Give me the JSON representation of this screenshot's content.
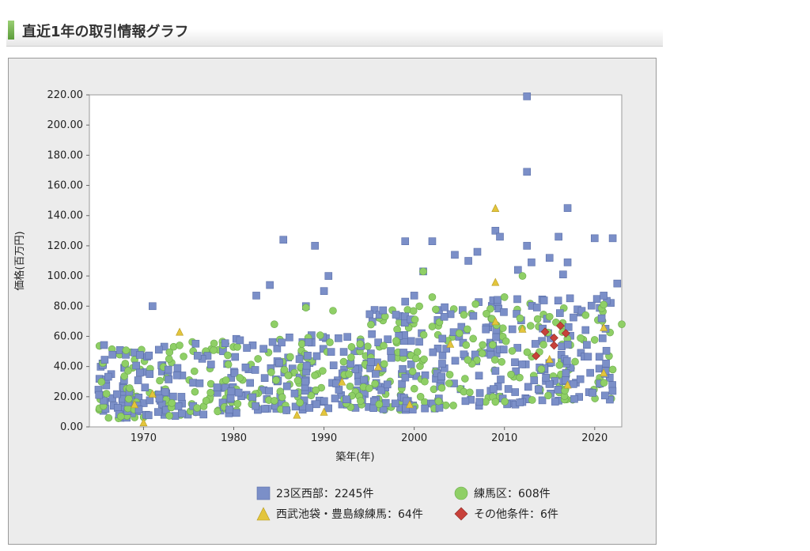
{
  "header": {
    "title": "直近1年の取引情報グラフ"
  },
  "chart_data": {
    "type": "scatter",
    "xlabel": "築年(年)",
    "ylabel": "価格(百万円)",
    "xlim": [
      1964,
      2023
    ],
    "ylim": [
      0,
      220
    ],
    "xticks": [
      1970,
      1980,
      1990,
      2000,
      2010,
      2020
    ],
    "yticks": [
      "0.00",
      "20.00",
      "40.00",
      "60.00",
      "80.00",
      "100.00",
      "120.00",
      "140.00",
      "160.00",
      "180.00",
      "200.00",
      "220.00"
    ],
    "grid": false,
    "legend_position": "bottom",
    "series": [
      {
        "name": "23区西部：2245件",
        "marker": "square",
        "color": "#7b8fc8",
        "points": [
          [
            2012.5,
            219
          ],
          [
            2012.5,
            169
          ],
          [
            2017,
            145
          ],
          [
            2009,
            130
          ],
          [
            2009.5,
            126
          ],
          [
            2016,
            126
          ],
          [
            2020,
            125
          ],
          [
            2022,
            125
          ],
          [
            1985.5,
            124
          ],
          [
            1999,
            123
          ],
          [
            2002,
            123
          ],
          [
            1989,
            120
          ],
          [
            2012.5,
            120
          ],
          [
            2007,
            116
          ],
          [
            2004.5,
            114
          ],
          [
            2015,
            112
          ],
          [
            2006,
            110
          ],
          [
            2013,
            109
          ],
          [
            2017,
            109
          ],
          [
            1990.5,
            100
          ],
          [
            2001,
            103
          ],
          [
            2011.5,
            104
          ],
          [
            2016.5,
            101
          ],
          [
            1984,
            94
          ],
          [
            1990,
            90
          ],
          [
            1982.5,
            87
          ],
          [
            2000,
            87
          ],
          [
            1971,
            80
          ],
          [
            1988,
            80
          ],
          [
            1999,
            83
          ],
          [
            2021,
            87
          ],
          [
            2022.5,
            95
          ]
        ]
      },
      {
        "name": "練馬区：608件",
        "marker": "circle",
        "color": "#8fcf66",
        "points": [
          [
            2001,
            103
          ],
          [
            2012,
            100
          ],
          [
            1988,
            79
          ],
          [
            1991,
            77
          ],
          [
            1984.5,
            68
          ],
          [
            2002,
            86
          ],
          [
            2010,
            86
          ],
          [
            2021,
            81
          ],
          [
            2023,
            68
          ],
          [
            1974,
            54
          ],
          [
            1994,
            55
          ],
          [
            1998,
            57
          ],
          [
            2005,
            62
          ],
          [
            2008,
            75
          ],
          [
            2015,
            73
          ],
          [
            2019,
            74
          ],
          [
            2022,
            38
          ]
        ]
      },
      {
        "name": "西武池袋・豊島線練馬：64件",
        "marker": "triangle",
        "color": "#e3c53c",
        "points": [
          [
            2009,
            145
          ],
          [
            2009,
            96
          ],
          [
            1974,
            63
          ],
          [
            1970,
            3
          ],
          [
            1969,
            15
          ],
          [
            1971,
            22
          ],
          [
            1990,
            10
          ],
          [
            1992,
            30
          ],
          [
            1999.5,
            15
          ],
          [
            2009,
            70
          ],
          [
            2012,
            65
          ],
          [
            2017,
            28
          ],
          [
            2021,
            36
          ],
          [
            2021,
            66
          ],
          [
            1987,
            8
          ],
          [
            1996,
            40
          ],
          [
            2004,
            55
          ],
          [
            2015,
            45
          ]
        ]
      },
      {
        "name": "その他条件：6件",
        "marker": "diamond",
        "color": "#c8413a",
        "points": [
          [
            2013.5,
            47
          ],
          [
            2014.5,
            63
          ],
          [
            2015.5,
            59
          ],
          [
            2015.5,
            54
          ],
          [
            2016.2,
            67
          ],
          [
            2016.8,
            62
          ]
        ]
      }
    ],
    "density_clusters": [
      {
        "x": [
          1965,
          1995
        ],
        "y": [
          5,
          55
        ],
        "colors": [
          "#7b8fc8",
          "#8fcf66"
        ]
      },
      {
        "x": [
          1995,
          2022
        ],
        "y": [
          10,
          80
        ],
        "colors": [
          "#7b8fc8",
          "#8fcf66"
        ]
      }
    ]
  }
}
